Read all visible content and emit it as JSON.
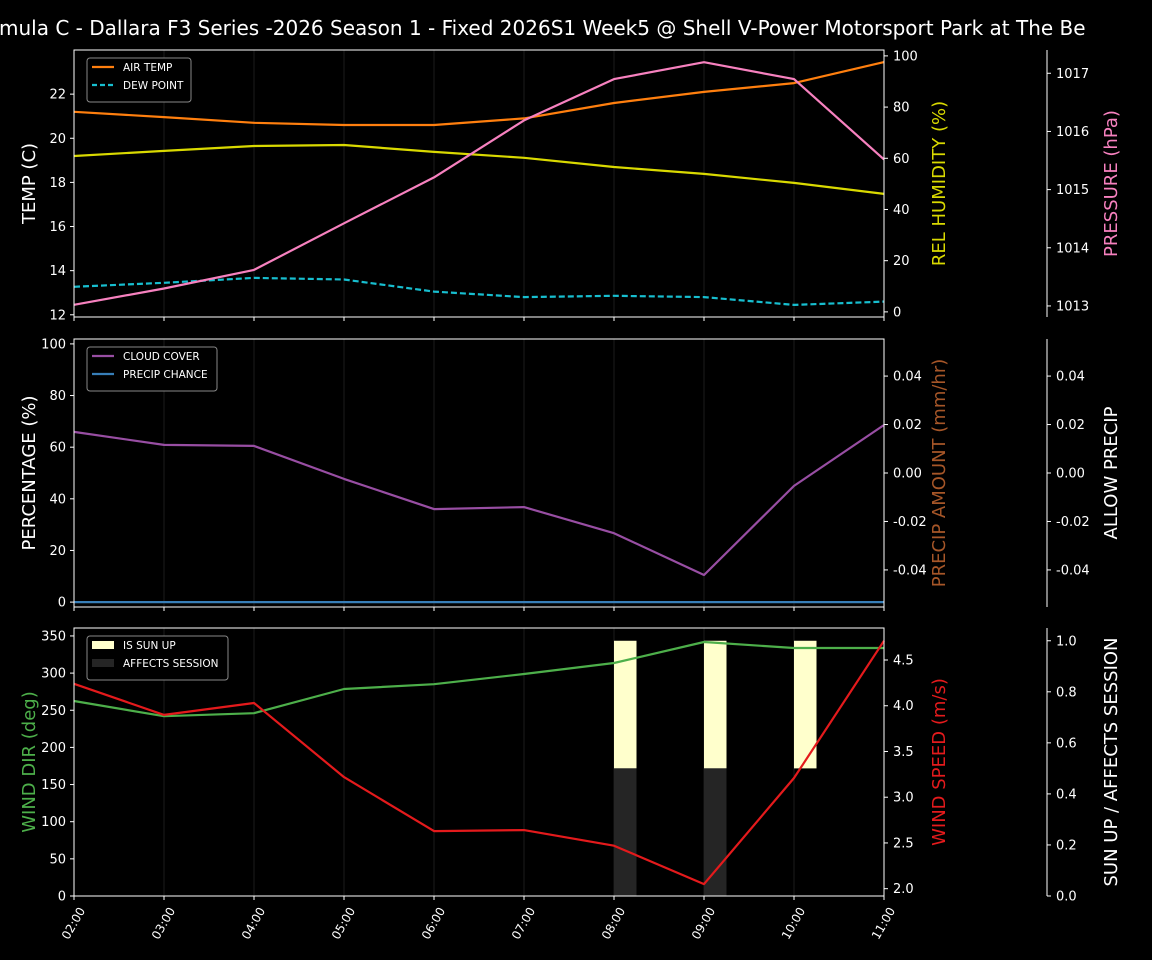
{
  "title": "mula C - Dallara F3 Series -2026 Season 1 - Fixed 2026S1 Week5 @ Shell V-Power Motorsport Park at The Be",
  "chart_data": [
    {
      "type": "line",
      "x": [
        "02:00",
        "03:00",
        "04:00",
        "05:00",
        "06:00",
        "07:00",
        "08:00",
        "09:00",
        "10:00",
        "11:00"
      ],
      "legend_position": "top-left",
      "grid": "vertical only",
      "axes": [
        {
          "label": "TEMP (C)",
          "side": "left",
          "color": "#ffffff",
          "ylim": [
            11.9,
            24.0
          ],
          "ticks": [
            12,
            14,
            16,
            18,
            20,
            22
          ]
        },
        {
          "label": "REL HUMIDITY (%)",
          "side": "right",
          "color": "#d9d900",
          "ylim": [
            -2,
            102.3
          ],
          "ticks": [
            0,
            20,
            40,
            60,
            80,
            100
          ]
        },
        {
          "label": "PRESSURE (hPa)",
          "side": "right-outer",
          "color": "#f781bf",
          "ylim": [
            1012.81,
            1017.4
          ],
          "ticks": [
            1013,
            1014,
            1015,
            1016,
            1017
          ]
        }
      ],
      "series": [
        {
          "name": "AIR TEMP",
          "axis": 0,
          "color": "#ff7f0e",
          "style": "solid",
          "values": [
            21.2,
            20.96,
            20.7,
            20.6,
            20.6,
            20.9,
            21.6,
            22.1,
            22.5,
            23.45
          ]
        },
        {
          "name": "DEW POINT",
          "axis": 0,
          "color": "#17becf",
          "style": "dashed",
          "values": [
            13.27,
            13.45,
            13.67,
            13.6,
            13.05,
            12.8,
            12.86,
            12.8,
            12.45,
            12.6
          ]
        },
        {
          "axis": 1,
          "color": "#d9d900",
          "style": "solid",
          "values": [
            60.9,
            62.9,
            64.8,
            65.2,
            62.5,
            60.2,
            56.6,
            53.9,
            50.4,
            46.1
          ]
        },
        {
          "axis": 2,
          "color": "#f781bf",
          "style": "solid",
          "values": [
            1013.02,
            1013.3,
            1013.62,
            1014.42,
            1015.21,
            1016.19,
            1016.9,
            1017.19,
            1016.9,
            1015.52
          ]
        }
      ]
    },
    {
      "type": "line",
      "x": [
        "02:00",
        "03:00",
        "04:00",
        "05:00",
        "06:00",
        "07:00",
        "08:00",
        "09:00",
        "10:00",
        "11:00"
      ],
      "legend_position": "top-left",
      "axes": [
        {
          "label": "PERCENTAGE (%)",
          "side": "left",
          "color": "#ffffff",
          "ylim": [
            -1.9,
            101.9
          ],
          "ticks": [
            0,
            20,
            40,
            60,
            80,
            100
          ]
        },
        {
          "label": "PRECIP AMOUNT (mm/hr)",
          "side": "right",
          "color": "#a65628",
          "ylim": [
            -0.0553,
            0.0553
          ],
          "ticks": [
            -0.04,
            -0.02,
            0.0,
            0.02,
            0.04
          ]
        },
        {
          "label": "ALLOW PRECIP",
          "side": "right-outer",
          "color": "#ffffff",
          "ylim": [
            -0.0553,
            0.0553
          ],
          "ticks": [
            -0.04,
            -0.02,
            0.0,
            0.02,
            0.04
          ]
        }
      ],
      "series": [
        {
          "name": "CLOUD COVER",
          "axis": 0,
          "color": "#984ea3",
          "style": "solid",
          "values": [
            65.9,
            60.9,
            60.5,
            47.7,
            36.0,
            36.8,
            26.7,
            10.5,
            45.0,
            68.6
          ]
        },
        {
          "name": "PRECIP CHANCE",
          "axis": 0,
          "color": "#377eb8",
          "style": "solid",
          "values": [
            0,
            0,
            0,
            0,
            0,
            0,
            0,
            0,
            0,
            0
          ]
        }
      ]
    },
    {
      "type": "line",
      "x": [
        "02:00",
        "03:00",
        "04:00",
        "05:00",
        "06:00",
        "07:00",
        "08:00",
        "09:00",
        "10:00",
        "11:00"
      ],
      "legend_position": "top-left",
      "axes": [
        {
          "label": "WIND DIR (deg)",
          "side": "left",
          "color": "#4daf4a",
          "ylim": [
            0,
            360.7
          ],
          "ticks": [
            0,
            50,
            100,
            150,
            200,
            250,
            300,
            350
          ]
        },
        {
          "label": "WIND SPEED (m/s)",
          "side": "right",
          "color": "#e41a1c",
          "ylim": [
            1.92,
            4.85
          ],
          "ticks": [
            2.0,
            2.5,
            3.0,
            3.5,
            4.0,
            4.5
          ]
        },
        {
          "label": "SUN UP / AFFECTS SESSION",
          "side": "right-outer",
          "color": "#ffffff",
          "ylim": [
            0,
            1.05
          ],
          "ticks": [
            0.0,
            0.2,
            0.4,
            0.6,
            0.8,
            1.0
          ]
        }
      ],
      "series": [
        {
          "axis": 0,
          "color": "#4daf4a",
          "style": "solid",
          "values": [
            262.5,
            242,
            246,
            278.6,
            285,
            298.8,
            313.6,
            341.9,
            333.8,
            333.8
          ]
        },
        {
          "axis": 1,
          "color": "#e41a1c",
          "style": "solid",
          "values": [
            4.24,
            3.9,
            4.03,
            3.22,
            2.63,
            2.64,
            2.47,
            2.05,
            3.21,
            4.71
          ]
        }
      ],
      "bars": [
        {
          "name": "IS SUN UP",
          "axis": 2,
          "color": "#ffffcc",
          "range": [
            0.5,
            1.0
          ],
          "values": [
            0,
            0,
            0,
            0,
            0,
            0,
            1,
            1,
            1,
            0
          ]
        },
        {
          "name": "AFFECTS SESSION",
          "axis": 2,
          "color": "#252525",
          "range": [
            0,
            0.5
          ],
          "values": [
            0,
            0,
            0,
            0,
            0,
            0,
            1,
            1,
            0,
            0
          ]
        }
      ]
    }
  ]
}
